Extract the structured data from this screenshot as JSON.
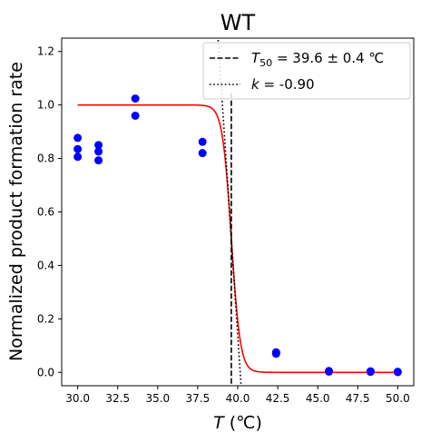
{
  "chart_data": {
    "type": "scatter",
    "title": "WT",
    "xlabel": {
      "var": "T",
      "unit": " (℃)"
    },
    "ylabel": "Normalized product formation rate",
    "xlim": [
      29.0,
      51.0
    ],
    "ylim": [
      -0.05,
      1.25
    ],
    "xticks": [
      "30.0",
      "32.5",
      "35.0",
      "37.5",
      "40.0",
      "42.5",
      "45.0",
      "47.5",
      "50.0"
    ],
    "yticks": [
      "0.0",
      "0.2",
      "0.4",
      "0.6",
      "0.8",
      "1.0",
      "1.2"
    ],
    "grid": false,
    "legend_position": "top-right",
    "points": {
      "color": "#0000ff",
      "x": [
        30.0,
        30.0,
        30.0,
        31.3,
        31.3,
        31.3,
        33.6,
        33.6,
        37.8,
        37.8,
        42.4,
        42.4,
        45.7,
        45.7,
        48.3,
        48.3,
        50.0,
        50.0
      ],
      "y": [
        0.877,
        0.835,
        0.806,
        0.85,
        0.826,
        0.793,
        1.024,
        0.96,
        0.862,
        0.82,
        0.075,
        0.07,
        0.005,
        0.003,
        0.004,
        0.002,
        0.002,
        0.001
      ]
    },
    "fit_curve": {
      "color": "#ff0000",
      "top": 1.0,
      "t50": 39.6,
      "slope_k": -0.9,
      "x_range": [
        30.0,
        50.0
      ]
    },
    "t50_line": {
      "x": 39.6,
      "y_top": 1.05,
      "legend_label": {
        "sym": "T",
        "sub": "50",
        "rest": " = 39.6 ± 0.4 ℃"
      }
    },
    "tangent_line": {
      "slope": -0.9,
      "through": [
        39.6,
        0.5
      ],
      "legend_label": {
        "sym": "k",
        "rest": " = -0.90"
      }
    }
  }
}
